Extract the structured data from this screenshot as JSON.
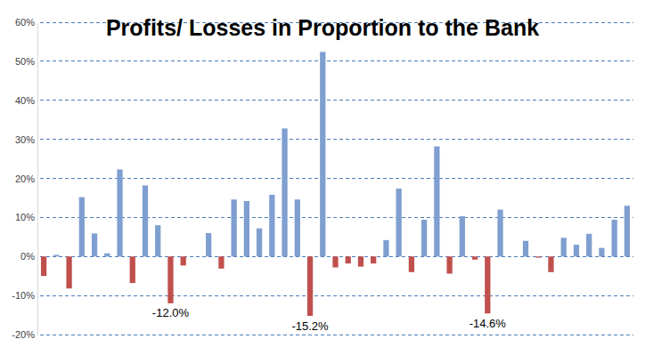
{
  "chart_data": {
    "type": "bar",
    "title": "Profits/ Losses in Proportion to the Bank",
    "categories": [
      null,
      null,
      null,
      null,
      null,
      null,
      null,
      null,
      null,
      null,
      null,
      null,
      null,
      null,
      null,
      null,
      null,
      null,
      null,
      null,
      null,
      null,
      null,
      null,
      null,
      null,
      null,
      null,
      null,
      null,
      null,
      null,
      null,
      null,
      null,
      null,
      null,
      null,
      null,
      null,
      null,
      null,
      null,
      null,
      null,
      null,
      null
    ],
    "values": [
      -5,
      0.4,
      -8.2,
      15.2,
      5.9,
      0.8,
      22.3,
      -6.8,
      18.2,
      8,
      -12,
      -2.3,
      0,
      6,
      -3.1,
      14.6,
      14.2,
      7.2,
      15.8,
      32.8,
      14.6,
      -15.2,
      52.4,
      -2.8,
      -1.8,
      -2.6,
      -1.8,
      4.2,
      17.4,
      -4,
      9.4,
      28.2,
      -4.4,
      10.3,
      -0.8,
      -14.6,
      12,
      0,
      4,
      -0.3,
      -4,
      4.8,
      3,
      5.8,
      2.2,
      9.4,
      13
    ],
    "value_labels": [
      null,
      null,
      null,
      null,
      null,
      null,
      null,
      null,
      null,
      null,
      "-12.0%",
      null,
      null,
      null,
      null,
      null,
      null,
      null,
      null,
      null,
      null,
      "-15.2%",
      null,
      null,
      null,
      null,
      null,
      null,
      null,
      null,
      null,
      null,
      null,
      null,
      null,
      "-14.6%",
      null,
      null,
      null,
      null,
      null,
      null,
      null,
      null,
      null,
      null,
      null
    ],
    "colors": [
      "#c0504d",
      "#7f9fd0",
      "#c0504d",
      "#7f9fd0",
      "#7f9fd0",
      "#7f9fd0",
      "#7f9fd0",
      "#c0504d",
      "#7f9fd0",
      "#7f9fd0",
      "#c0504d",
      "#c0504d",
      "#7f9fd0",
      "#7f9fd0",
      "#c0504d",
      "#7f9fd0",
      "#7f9fd0",
      "#7f9fd0",
      "#7f9fd0",
      "#7f9fd0",
      "#7f9fd0",
      "#c0504d",
      "#7f9fd0",
      "#c0504d",
      "#c0504d",
      "#c0504d",
      "#c0504d",
      "#7f9fd0",
      "#7f9fd0",
      "#c0504d",
      "#7f9fd0",
      "#7f9fd0",
      "#c0504d",
      "#7f9fd0",
      "#c0504d",
      "#c0504d",
      "#7f9fd0",
      "#7f9fd0",
      "#7f9fd0",
      "#c0504d",
      "#c0504d",
      "#7f9fd0",
      "#7f9fd0",
      "#7f9fd0",
      "#7f9fd0",
      "#7f9fd0",
      "#7f9fd0"
    ],
    "ylim": [
      -20,
      60
    ],
    "yticks": [
      {
        "value": -20,
        "label": "-20%"
      },
      {
        "value": -10,
        "label": "-10%"
      },
      {
        "value": 0,
        "label": "0%"
      },
      {
        "value": 10,
        "label": "10%"
      },
      {
        "value": 20,
        "label": "20%"
      },
      {
        "value": 30,
        "label": "30%"
      },
      {
        "value": 40,
        "label": "40%"
      },
      {
        "value": 50,
        "label": "50%"
      },
      {
        "value": 60,
        "label": "60%"
      }
    ],
    "grid": true,
    "data_labels": true,
    "tick_labels": "y"
  }
}
